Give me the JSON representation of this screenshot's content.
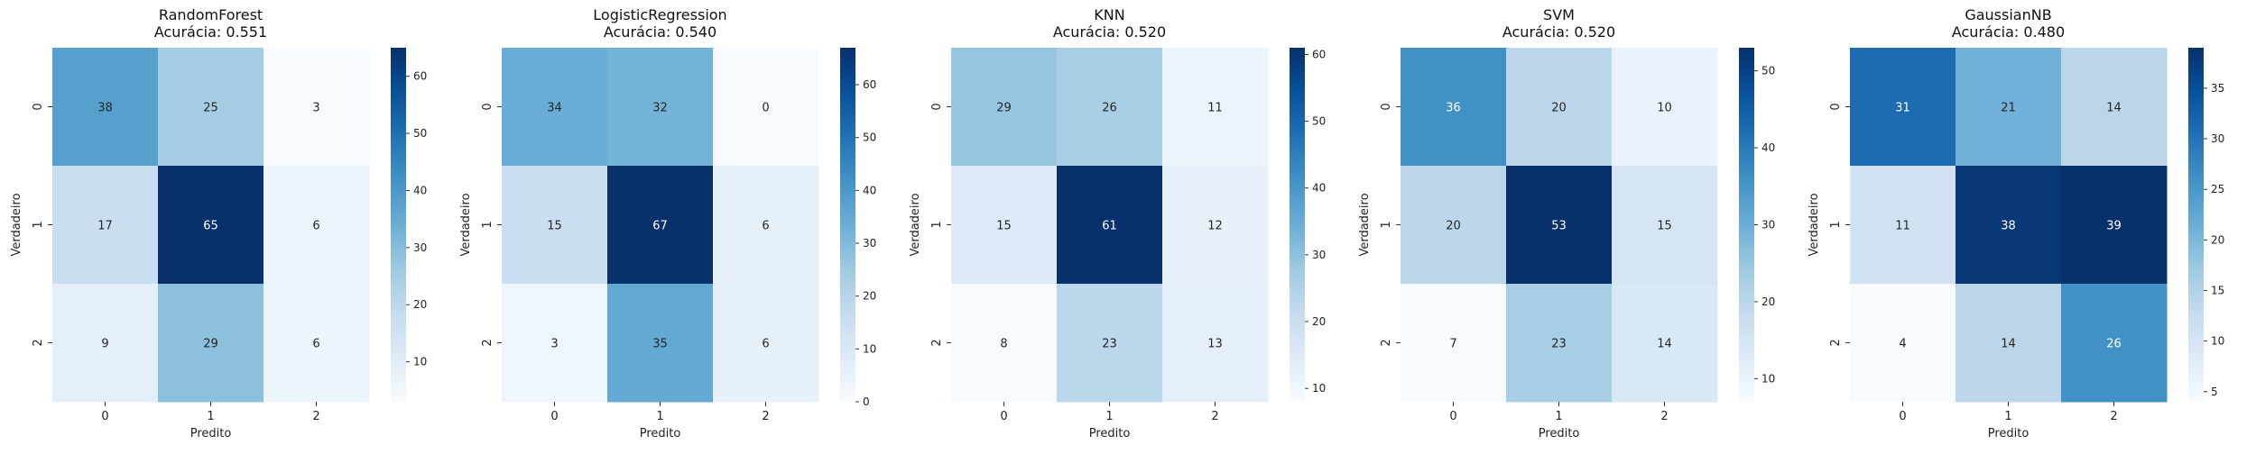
{
  "chart_data": [
    {
      "type": "heatmap",
      "title": "RandomForest",
      "subtitle": "Acurácia: 0.551",
      "xlabel": "Predito",
      "ylabel": "Verdadeiro",
      "x_categories": [
        "0",
        "1",
        "2"
      ],
      "y_categories": [
        "0",
        "1",
        "2"
      ],
      "values": [
        [
          38,
          25,
          3
        ],
        [
          17,
          65,
          6
        ],
        [
          9,
          29,
          6
        ]
      ],
      "colorbar": {
        "min": 3,
        "max": 65,
        "ticks": [
          10,
          20,
          30,
          40,
          50,
          60
        ]
      }
    },
    {
      "type": "heatmap",
      "title": "LogisticRegression",
      "subtitle": "Acurácia: 0.540",
      "xlabel": "Predito",
      "ylabel": "Verdadeiro",
      "x_categories": [
        "0",
        "1",
        "2"
      ],
      "y_categories": [
        "0",
        "1",
        "2"
      ],
      "values": [
        [
          34,
          32,
          0
        ],
        [
          15,
          67,
          6
        ],
        [
          3,
          35,
          6
        ]
      ],
      "colorbar": {
        "min": 0,
        "max": 67,
        "ticks": [
          0,
          10,
          20,
          30,
          40,
          50,
          60
        ]
      }
    },
    {
      "type": "heatmap",
      "title": "KNN",
      "subtitle": "Acurácia: 0.520",
      "xlabel": "Predito",
      "ylabel": "Verdadeiro",
      "x_categories": [
        "0",
        "1",
        "2"
      ],
      "y_categories": [
        "0",
        "1",
        "2"
      ],
      "values": [
        [
          29,
          26,
          11
        ],
        [
          15,
          61,
          12
        ],
        [
          8,
          23,
          13
        ]
      ],
      "colorbar": {
        "min": 8,
        "max": 61,
        "ticks": [
          10,
          20,
          30,
          40,
          50,
          60
        ]
      }
    },
    {
      "type": "heatmap",
      "title": "SVM",
      "subtitle": "Acurácia: 0.520",
      "xlabel": "Predito",
      "ylabel": "Verdadeiro",
      "x_categories": [
        "0",
        "1",
        "2"
      ],
      "y_categories": [
        "0",
        "1",
        "2"
      ],
      "values": [
        [
          36,
          20,
          10
        ],
        [
          20,
          53,
          15
        ],
        [
          7,
          23,
          14
        ]
      ],
      "colorbar": {
        "min": 7,
        "max": 53,
        "ticks": [
          10,
          20,
          30,
          40,
          50
        ]
      }
    },
    {
      "type": "heatmap",
      "title": "GaussianNB",
      "subtitle": "Acurácia: 0.480",
      "xlabel": "Predito",
      "ylabel": "Verdadeiro",
      "x_categories": [
        "0",
        "1",
        "2"
      ],
      "y_categories": [
        "0",
        "1",
        "2"
      ],
      "values": [
        [
          31,
          21,
          14
        ],
        [
          11,
          38,
          39
        ],
        [
          4,
          14,
          26
        ]
      ],
      "colorbar": {
        "min": 4,
        "max": 39,
        "ticks": [
          5,
          10,
          15,
          20,
          25,
          30,
          35
        ]
      }
    }
  ],
  "colormap": [
    "#f7fbff",
    "#deebf7",
    "#c6dbef",
    "#9ecae1",
    "#6baed6",
    "#4292c6",
    "#2171b5",
    "#08519c",
    "#08306b"
  ]
}
